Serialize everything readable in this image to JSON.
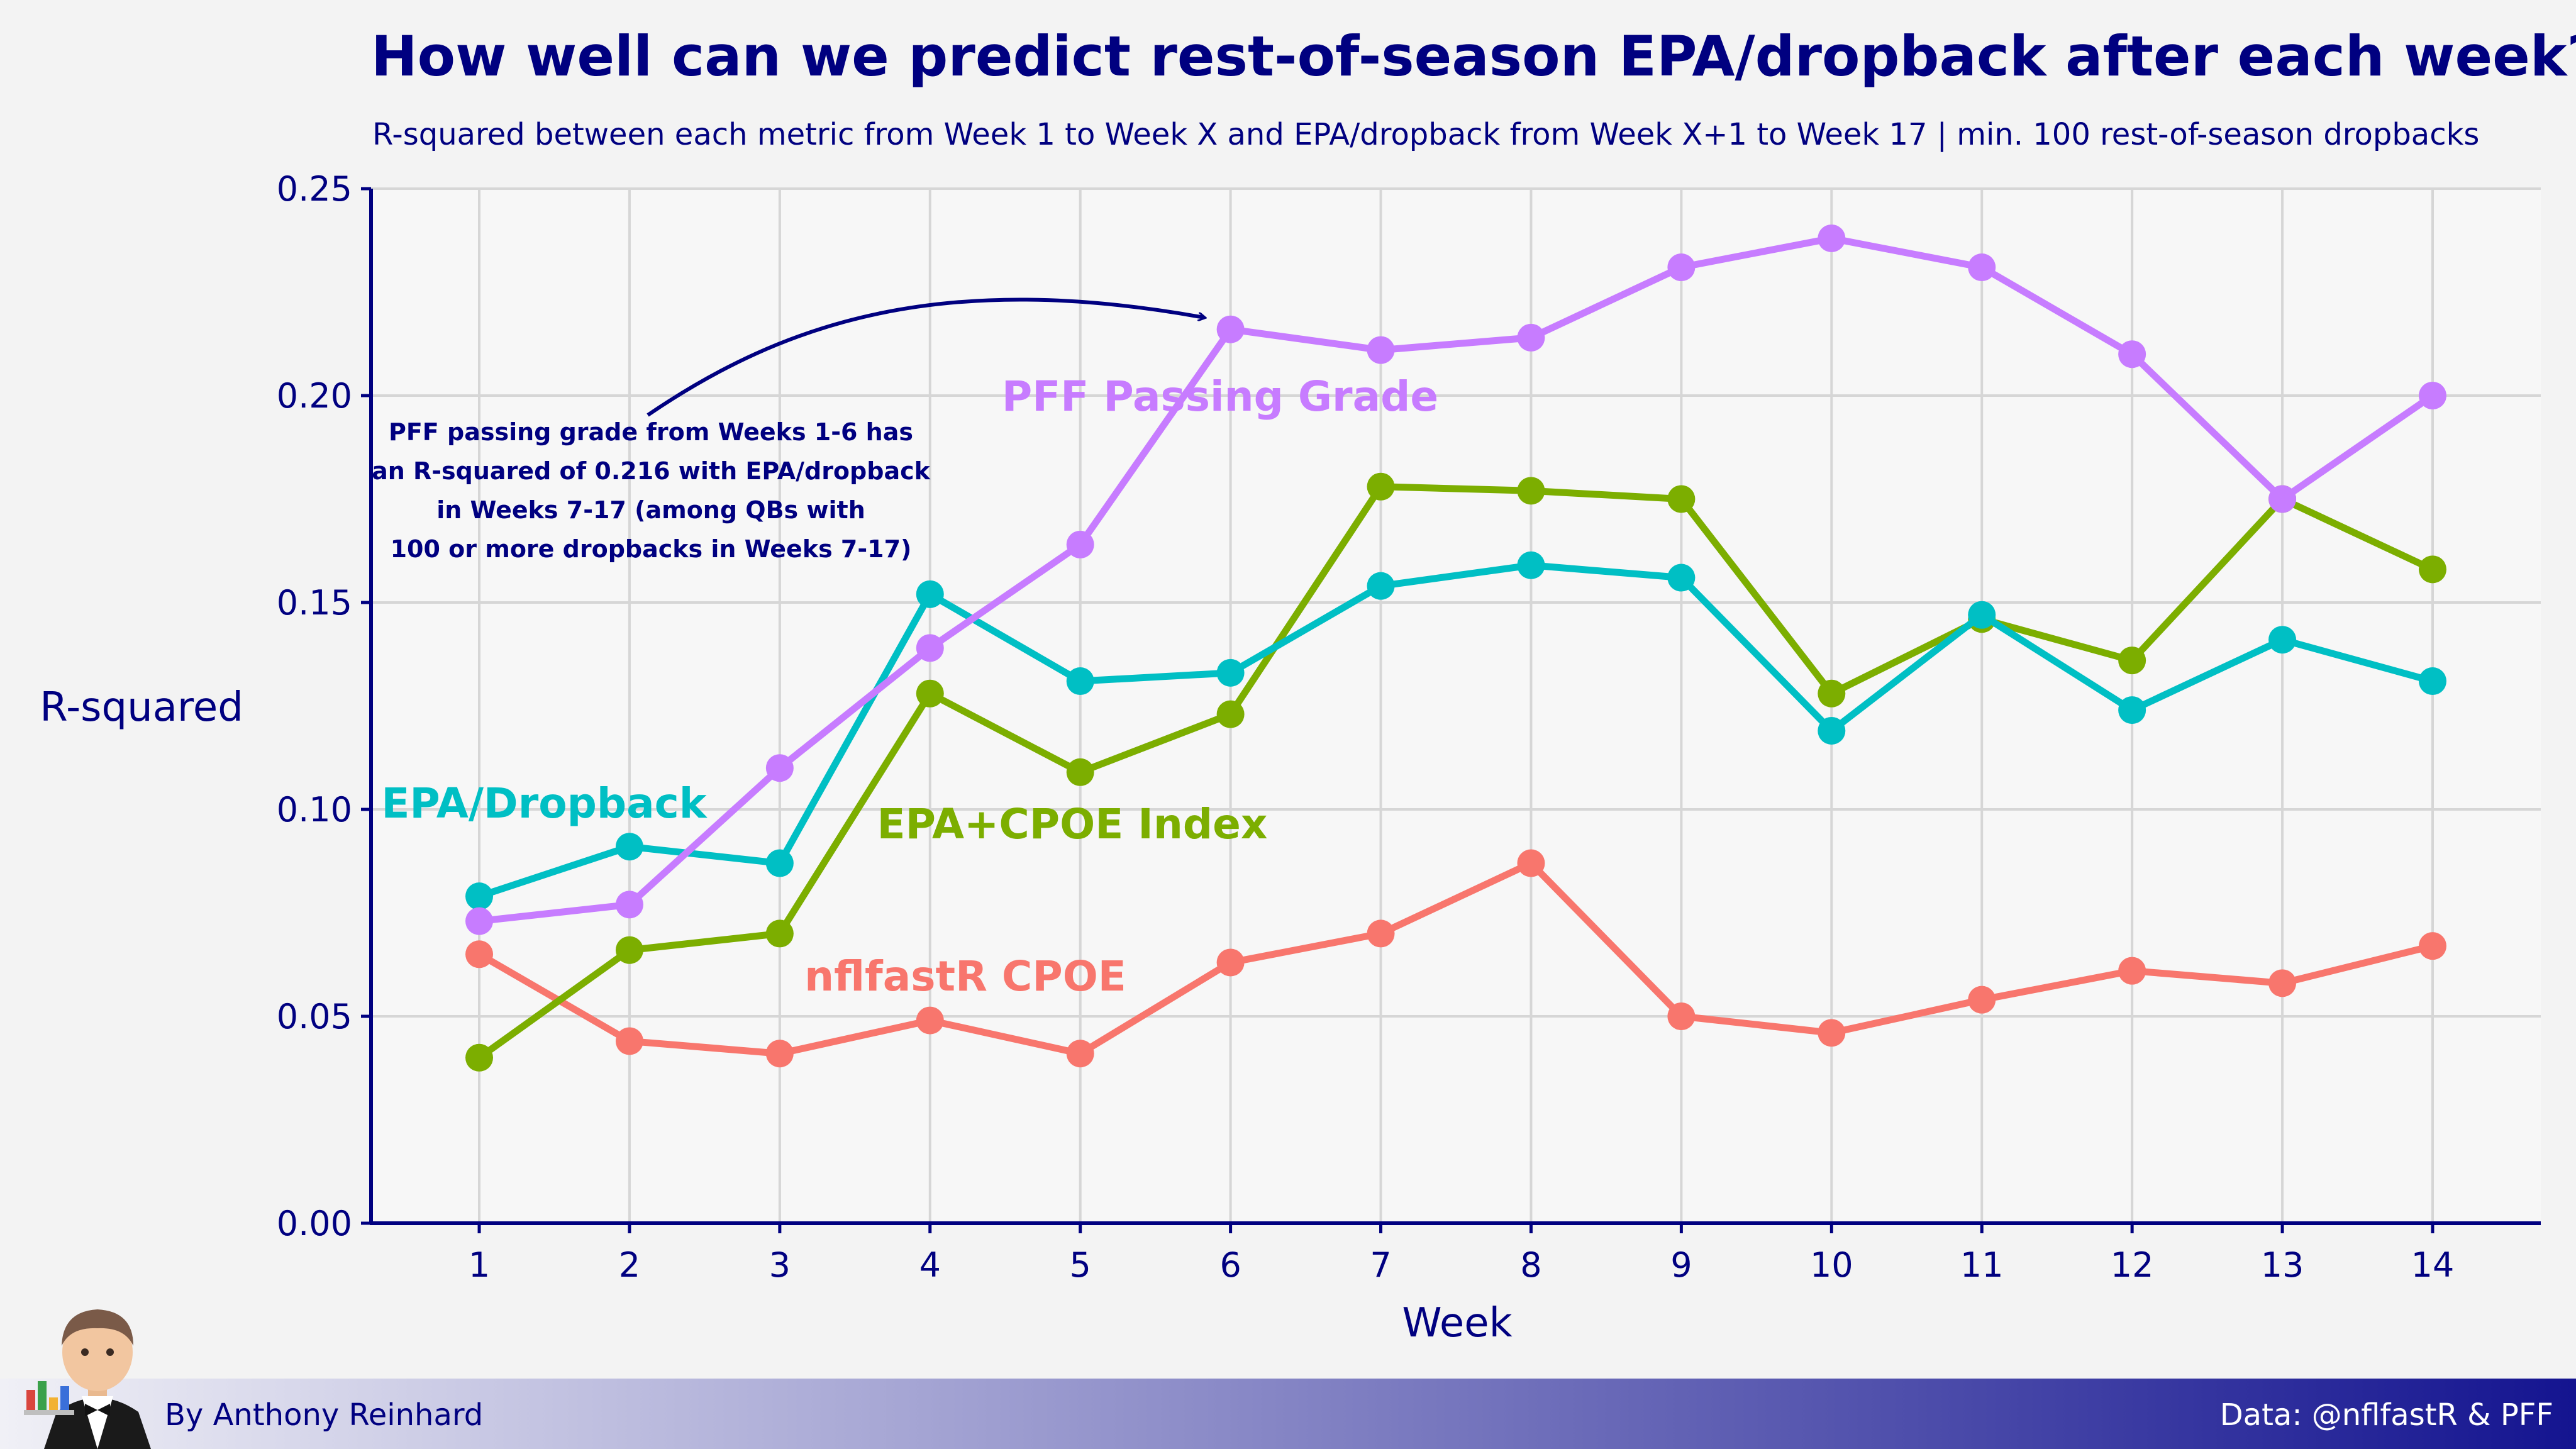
{
  "chart_data": {
    "type": "line",
    "title": "How well can we predict rest-of-season EPA/dropback after each week?",
    "subtitle": "R-squared between each metric from Week 1 to Week X and EPA/dropback from Week X+1 to Week 17  |  min. 100 rest-of-season dropbacks",
    "xlabel": "Week",
    "ylabel": "R-squared",
    "x": [
      1,
      2,
      3,
      4,
      5,
      6,
      7,
      8,
      9,
      10,
      11,
      12,
      13,
      14
    ],
    "x_tick_labels": [
      "1",
      "2",
      "3",
      "4",
      "5",
      "6",
      "7",
      "8",
      "9",
      "10",
      "11",
      "12",
      "13",
      "14"
    ],
    "ylim": [
      0,
      0.25
    ],
    "y_ticks": [
      0,
      0.05,
      0.1,
      0.15,
      0.2,
      0.25
    ],
    "y_tick_labels": [
      "0.00",
      "0.05",
      "0.10",
      "0.15",
      "0.20",
      "0.25"
    ],
    "grid": true,
    "series": [
      {
        "name": "nflfastR CPOE",
        "color": "#F8766D",
        "values": [
          0.065,
          0.044,
          0.041,
          0.049,
          0.041,
          0.063,
          0.07,
          0.087,
          0.05,
          0.046,
          0.054,
          0.061,
          0.058,
          0.067
        ]
      },
      {
        "name": "EPA+CPOE Index",
        "color": "#7CAE00",
        "values": [
          0.04,
          0.066,
          0.07,
          0.128,
          0.109,
          0.123,
          0.178,
          0.177,
          0.175,
          0.128,
          0.146,
          0.136,
          0.175,
          0.158
        ]
      },
      {
        "name": "EPA/Dropback",
        "color": "#00BFC4",
        "values": [
          0.079,
          0.091,
          0.087,
          0.152,
          0.131,
          0.133,
          0.154,
          0.159,
          0.156,
          0.119,
          0.147,
          0.124,
          0.141,
          0.131
        ]
      },
      {
        "name": "PFF Passing Grade",
        "color": "#C77CFF",
        "values": [
          0.073,
          0.077,
          0.11,
          0.139,
          0.164,
          0.216,
          0.211,
          0.214,
          0.231,
          0.238,
          0.231,
          0.21,
          0.175,
          0.2
        ]
      }
    ],
    "annotation": {
      "lines": [
        "PFF passing grade from Weeks 1-6 has",
        "an R-squared of 0.216 with EPA/dropback",
        "in Weeks 7-17 (among QBs with",
        "100 or more dropbacks in Weeks 7-17)"
      ],
      "points_to": {
        "x": 6,
        "y": 0.216
      }
    }
  },
  "footer": {
    "author": "By Anthony Reinhard",
    "source": "Data: @nflfastR & PFF"
  },
  "colors": {
    "navy": "#000080",
    "background": "#f3f3f3"
  }
}
